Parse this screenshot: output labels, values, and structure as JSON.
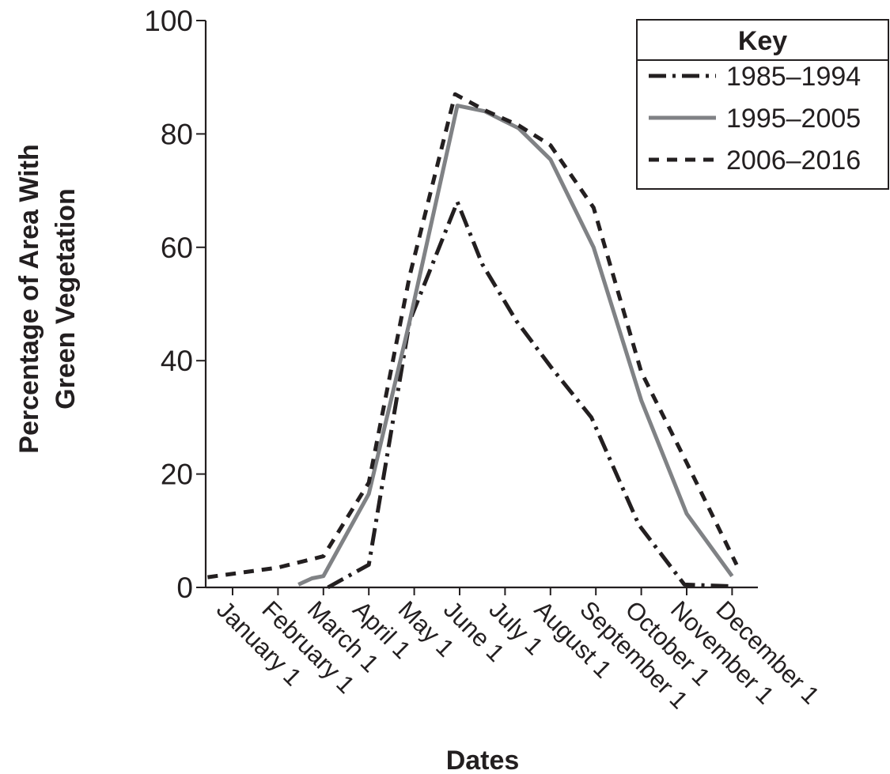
{
  "chart_data": {
    "type": "line",
    "title": "",
    "xlabel": "Dates",
    "ylabel_lines": [
      "Percentage of Area With",
      "Green Vegetation"
    ],
    "ylim": [
      0,
      100
    ],
    "yticks": [
      0,
      20,
      40,
      60,
      80,
      100
    ],
    "x_tick_labels": [
      "January 1",
      "February 1",
      "March 1",
      "April 1",
      "May 1",
      "June 1",
      "July 1",
      "August 1",
      "September 1",
      "October 1",
      "November 1",
      "December 1"
    ],
    "x_axis_unit": "month (1 = January 1, 12 = December 1)",
    "grid": false,
    "legend": {
      "title": "Key",
      "placement": "top-right"
    },
    "series": [
      {
        "name": "1985–1994",
        "style": "dash-dot",
        "color": "#231f20",
        "points": [
          [
            3.1,
            0
          ],
          [
            4.0,
            4
          ],
          [
            4.9,
            47
          ],
          [
            5.95,
            68
          ],
          [
            6.5,
            57
          ],
          [
            7.25,
            47
          ],
          [
            8.0,
            39
          ],
          [
            8.9,
            30
          ],
          [
            9.95,
            11
          ],
          [
            10.95,
            0.5
          ],
          [
            12.0,
            0.2
          ]
        ]
      },
      {
        "name": "1995–2005",
        "style": "solid",
        "color": "#808285",
        "points": [
          [
            2.45,
            0.5
          ],
          [
            2.75,
            1.6
          ],
          [
            3.0,
            2
          ],
          [
            4.0,
            16.5
          ],
          [
            4.9,
            47
          ],
          [
            5.95,
            85
          ],
          [
            6.55,
            84
          ],
          [
            7.3,
            81
          ],
          [
            8.0,
            75.5
          ],
          [
            8.95,
            60
          ],
          [
            10.0,
            33
          ],
          [
            11.0,
            13
          ],
          [
            12.0,
            2
          ]
        ]
      },
      {
        "name": "2006–2016",
        "style": "dashed",
        "color": "#231f20",
        "points": [
          [
            0.45,
            1.8
          ],
          [
            2.0,
            3.5
          ],
          [
            3.0,
            5.5
          ],
          [
            4.0,
            18.5
          ],
          [
            4.9,
            55
          ],
          [
            5.9,
            87
          ],
          [
            6.6,
            84
          ],
          [
            7.3,
            81.5
          ],
          [
            8.0,
            78
          ],
          [
            8.95,
            67
          ],
          [
            10.0,
            38
          ],
          [
            11.0,
            22
          ],
          [
            12.1,
            4
          ]
        ]
      }
    ]
  }
}
